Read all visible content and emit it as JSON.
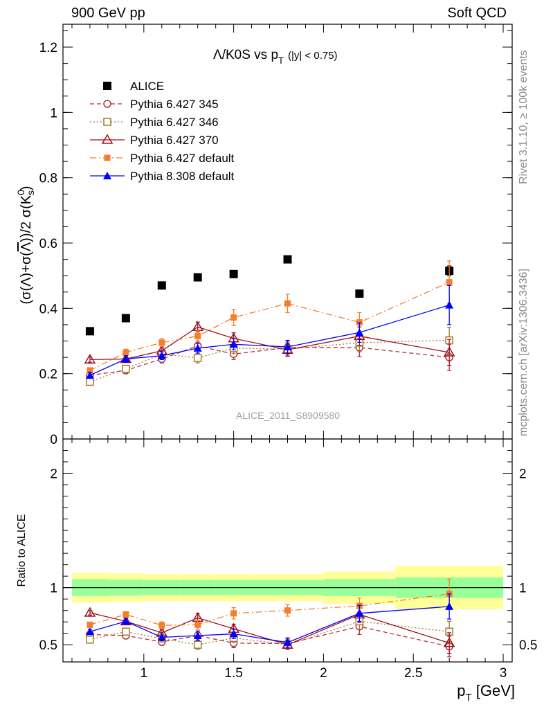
{
  "header": {
    "left": "900 GeV pp",
    "right": "Soft QCD"
  },
  "side_labels": {
    "rivet": "Rivet 3.1.10, ≥ 100k events",
    "mcplots": "mcplots.cern.ch [arXiv:1306.3436]"
  },
  "chart_data": [
    {
      "type": "scatter",
      "title": "Λ/K0S vs p_T (|y| < 0.75)",
      "title_main": "Λ/K0S vs p",
      "title_sub": "T",
      "title_tail": "(|y| < 0.75)",
      "ylabel": "(σ(Λ)+σ(Λ̄))/2 σ(K0s)",
      "ylabel_main": "(σ(Λ)+σ(",
      "ylabel_overline": "Λ",
      "ylabel_mid": "))/2 σ(K",
      "ylabel_sup": "0",
      "ylabel_sub": "s",
      "ylabel_close": ")",
      "watermark": "ALICE_2011_S8909580",
      "xlim": [
        0.55,
        3.05
      ],
      "ylim": [
        0,
        1.27
      ],
      "ytick_values": [
        0,
        0.2,
        0.4,
        0.6,
        0.8,
        1,
        1.2
      ],
      "ytick_labels": [
        "0",
        "0.2",
        "0.4",
        "0.6",
        "0.8",
        "1",
        "1.2"
      ],
      "x": [
        0.7,
        0.9,
        1.1,
        1.3,
        1.5,
        1.8,
        2.2,
        2.7
      ],
      "series": [
        {
          "name": "ALICE",
          "color": "#000000",
          "marker": "square-filled",
          "line": "none",
          "values": [
            0.33,
            0.37,
            0.47,
            0.495,
            0.505,
            0.55,
            0.445,
            0.515
          ],
          "errors": [
            0.004,
            0.004,
            0.005,
            0.005,
            0.006,
            0.007,
            0.008,
            0.015
          ]
        },
        {
          "name": "Pythia 6.427 345",
          "color": "#b0303a",
          "marker": "circle-open",
          "line": "dashed",
          "values": [
            0.195,
            0.21,
            0.245,
            0.285,
            0.26,
            0.28,
            0.28,
            0.25
          ],
          "errors": [
            0.008,
            0.01,
            0.012,
            0.015,
            0.017,
            0.02,
            0.028,
            0.04
          ]
        },
        {
          "name": "Pythia 6.427 346",
          "color": "#a0782a",
          "marker": "square-open",
          "line": "dotted",
          "values": [
            0.175,
            0.215,
            0.26,
            0.248,
            0.278,
            0.275,
            0.295,
            0.302
          ],
          "errors": [
            0.008,
            0.01,
            0.012,
            0.015,
            0.017,
            0.02,
            0.028,
            0.04
          ]
        },
        {
          "name": "Pythia 6.427 370",
          "color": "#a01022",
          "marker": "triangle-open",
          "line": "solid",
          "values": [
            0.243,
            0.245,
            0.27,
            0.343,
            0.308,
            0.273,
            0.315,
            0.265
          ],
          "errors": [
            0.008,
            0.01,
            0.012,
            0.015,
            0.017,
            0.02,
            0.028,
            0.04
          ]
        },
        {
          "name": "Pythia 6.427 default",
          "color": "#f47f2a",
          "marker": "square-filled-small",
          "line": "dashdot",
          "values": [
            0.21,
            0.265,
            0.295,
            0.315,
            0.372,
            0.415,
            0.357,
            0.48
          ],
          "errors": [
            0.008,
            0.01,
            0.012,
            0.016,
            0.025,
            0.028,
            0.03,
            0.065
          ]
        },
        {
          "name": "Pythia 8.308 default",
          "color": "#0000ff",
          "marker": "triangle-filled",
          "line": "solid",
          "values": [
            0.195,
            0.245,
            0.255,
            0.278,
            0.29,
            0.282,
            0.326,
            0.41
          ],
          "errors": [
            0.008,
            0.01,
            0.012,
            0.015,
            0.017,
            0.02,
            0.03,
            0.06
          ]
        }
      ]
    },
    {
      "type": "scatter",
      "ylabel": "Ratio to ALICE",
      "xlabel": "p_T [GeV]",
      "xlabel_main": "p",
      "xlabel_sub": "T",
      "xlabel_tail": " [GeV]",
      "xlim": [
        0.55,
        3.05
      ],
      "ylim": [
        0.35,
        2.3
      ],
      "xtick_values": [
        1,
        1.5,
        2,
        2.5,
        3
      ],
      "xtick_labels": [
        "1",
        "1.5",
        "2",
        "2.5",
        "3"
      ],
      "ytick_values": [
        0.5,
        1,
        2
      ],
      "ytick_labels": [
        "0.5",
        "1",
        "2"
      ],
      "bands": [
        {
          "x": [
            0.6,
            0.8
          ],
          "inner": 0.075,
          "outer": 0.13
        },
        {
          "x": [
            0.8,
            1.0
          ],
          "inner": 0.07,
          "outer": 0.125
        },
        {
          "x": [
            1.0,
            1.2
          ],
          "inner": 0.065,
          "outer": 0.12
        },
        {
          "x": [
            1.2,
            1.4
          ],
          "inner": 0.065,
          "outer": 0.12
        },
        {
          "x": [
            1.4,
            1.6
          ],
          "inner": 0.065,
          "outer": 0.12
        },
        {
          "x": [
            1.6,
            2.0
          ],
          "inner": 0.065,
          "outer": 0.12
        },
        {
          "x": [
            2.0,
            2.4
          ],
          "inner": 0.075,
          "outer": 0.14
        },
        {
          "x": [
            2.4,
            3.0
          ],
          "inner": 0.09,
          "outer": 0.19
        }
      ],
      "x": [
        0.7,
        0.9,
        1.1,
        1.3,
        1.5,
        1.8,
        2.2,
        2.7
      ],
      "series": [
        {
          "name": "Pythia 6.427 345",
          "color": "#b0303a",
          "marker": "circle-open",
          "line": "dashed",
          "values": [
            0.59,
            0.58,
            0.525,
            0.58,
            0.515,
            0.51,
            0.66,
            0.485
          ],
          "errors": [
            0.02,
            0.025,
            0.03,
            0.04,
            0.04,
            0.04,
            0.07,
            0.09
          ]
        },
        {
          "name": "Pythia 6.427 346",
          "color": "#a0782a",
          "marker": "square-open",
          "line": "dotted",
          "values": [
            0.545,
            0.615,
            0.555,
            0.5,
            0.56,
            0.5,
            0.705,
            0.615
          ],
          "errors": [
            0.02,
            0.025,
            0.03,
            0.04,
            0.04,
            0.04,
            0.07,
            0.09
          ]
        },
        {
          "name": "Pythia 6.427 370",
          "color": "#a01022",
          "marker": "triangle-open",
          "line": "solid",
          "values": [
            0.78,
            0.705,
            0.605,
            0.735,
            0.64,
            0.5,
            0.765,
            0.515
          ],
          "errors": [
            0.02,
            0.025,
            0.03,
            0.04,
            0.04,
            0.04,
            0.07,
            0.09
          ]
        },
        {
          "name": "Pythia 6.427 default",
          "color": "#f47f2a",
          "marker": "square-filled-small",
          "line": "dashdot",
          "values": [
            0.675,
            0.765,
            0.67,
            0.675,
            0.775,
            0.8,
            0.84,
            0.945
          ],
          "errors": [
            0.02,
            0.025,
            0.03,
            0.04,
            0.05,
            0.05,
            0.07,
            0.13
          ]
        },
        {
          "name": "Pythia 8.308 default",
          "color": "#0000ff",
          "marker": "triangle-filled",
          "line": "solid",
          "values": [
            0.615,
            0.705,
            0.565,
            0.58,
            0.595,
            0.52,
            0.775,
            0.835
          ],
          "errors": [
            0.02,
            0.025,
            0.03,
            0.04,
            0.04,
            0.04,
            0.07,
            0.11
          ]
        }
      ]
    }
  ]
}
